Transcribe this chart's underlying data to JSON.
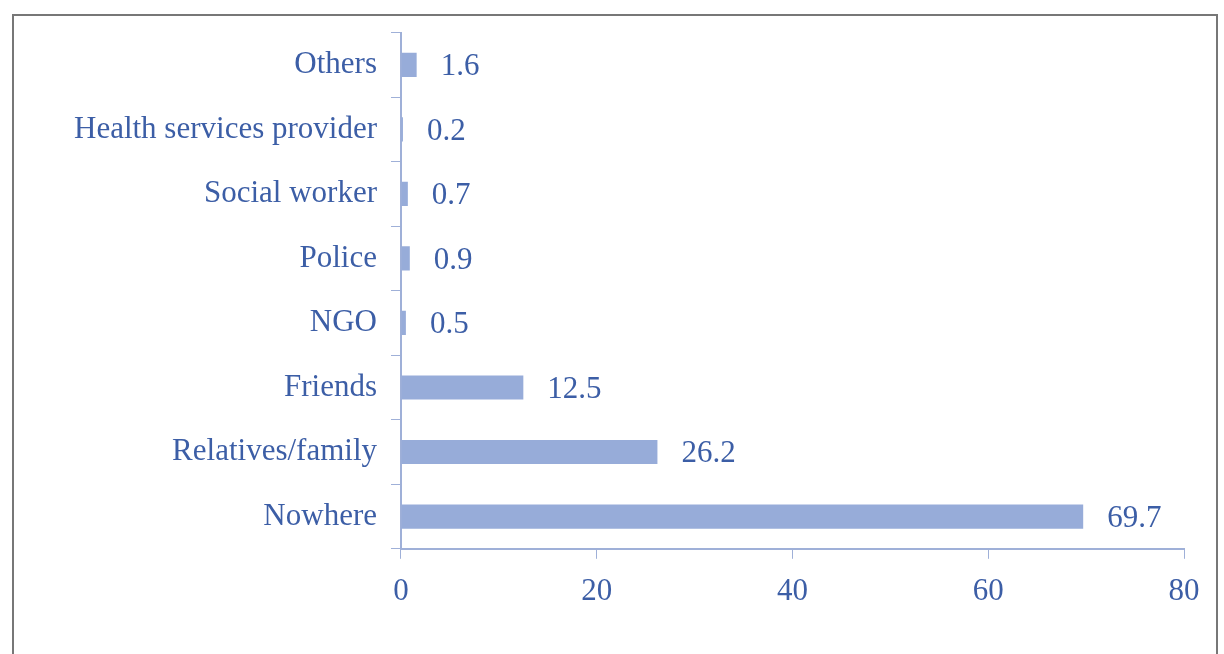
{
  "chart_data": {
    "type": "bar",
    "orientation": "horizontal",
    "categories": [
      "Others",
      "Health services provider",
      "Social worker",
      "Police",
      "NGO",
      "Friends",
      "Relatives/family",
      "Nowhere"
    ],
    "values": [
      1.6,
      0.2,
      0.7,
      0.9,
      0.5,
      12.5,
      26.2,
      69.7
    ],
    "color": "#97acd9",
    "xlim": [
      0,
      80
    ],
    "xticks": [
      0,
      20,
      40,
      60,
      80
    ],
    "grid": false,
    "legend": false,
    "data_labels": true
  }
}
